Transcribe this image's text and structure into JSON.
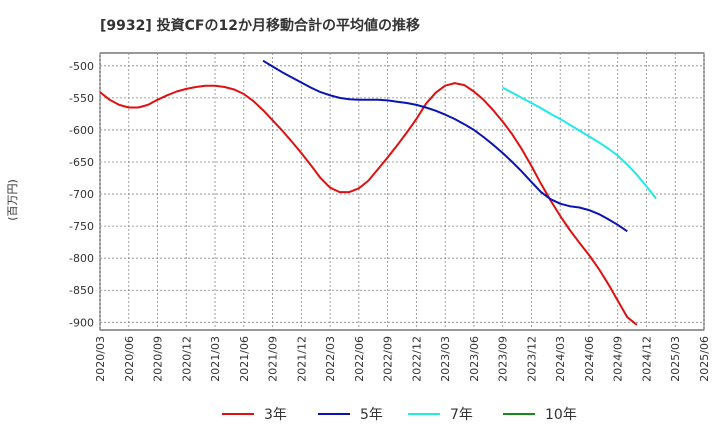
{
  "chart_data": {
    "type": "line",
    "title": "[9932]  投資CFの12か月移動合計の平均値の推移",
    "ylabel": "(百万円)",
    "xlabel": "",
    "ylim": [
      -912,
      -480
    ],
    "yticks": [
      -500,
      -550,
      -600,
      -650,
      -700,
      -750,
      -800,
      -850,
      -900
    ],
    "xlim": [
      "2020-03",
      "2025-06"
    ],
    "x_ticks": [
      "2020/03",
      "2020/06",
      "2020/09",
      "2020/12",
      "2021/03",
      "2021/06",
      "2021/09",
      "2021/12",
      "2022/03",
      "2022/06",
      "2022/09",
      "2022/12",
      "2023/03",
      "2023/06",
      "2023/09",
      "2023/12",
      "2024/03",
      "2024/06",
      "2024/09",
      "2024/12",
      "2025/03",
      "2025/06"
    ],
    "grid": true,
    "legend_position": "bottom",
    "series": [
      {
        "name": "3年",
        "color": "#dd1111",
        "points": [
          [
            "2020-03",
            -541
          ],
          [
            "2020-04",
            -553
          ],
          [
            "2020-05",
            -561
          ],
          [
            "2020-06",
            -565
          ],
          [
            "2020-07",
            -565
          ],
          [
            "2020-08",
            -561
          ],
          [
            "2020-09",
            -553
          ],
          [
            "2020-10",
            -546
          ],
          [
            "2020-11",
            -540
          ],
          [
            "2020-12",
            -536
          ],
          [
            "2021-01",
            -533
          ],
          [
            "2021-02",
            -531
          ],
          [
            "2021-03",
            -531
          ],
          [
            "2021-04",
            -533
          ],
          [
            "2021-05",
            -537
          ],
          [
            "2021-06",
            -544
          ],
          [
            "2021-07",
            -555
          ],
          [
            "2021-08",
            -569
          ],
          [
            "2021-09",
            -585
          ],
          [
            "2021-10",
            -601
          ],
          [
            "2021-11",
            -618
          ],
          [
            "2021-12",
            -636
          ],
          [
            "2022-01",
            -655
          ],
          [
            "2022-02",
            -675
          ],
          [
            "2022-03",
            -690
          ],
          [
            "2022-04",
            -697
          ],
          [
            "2022-05",
            -697
          ],
          [
            "2022-06",
            -691
          ],
          [
            "2022-07",
            -679
          ],
          [
            "2022-08",
            -661
          ],
          [
            "2022-09",
            -643
          ],
          [
            "2022-10",
            -624
          ],
          [
            "2022-11",
            -604
          ],
          [
            "2022-12",
            -583
          ],
          [
            "2023-01",
            -559
          ],
          [
            "2023-02",
            -542
          ],
          [
            "2023-03",
            -531
          ],
          [
            "2023-04",
            -527
          ],
          [
            "2023-05",
            -530
          ],
          [
            "2023-06",
            -540
          ],
          [
            "2023-07",
            -553
          ],
          [
            "2023-08",
            -569
          ],
          [
            "2023-09",
            -587
          ],
          [
            "2023-10",
            -607
          ],
          [
            "2023-11",
            -630
          ],
          [
            "2023-12",
            -656
          ],
          [
            "2024-01",
            -684
          ],
          [
            "2024-02",
            -710
          ],
          [
            "2024-03",
            -734
          ],
          [
            "2024-04",
            -756
          ],
          [
            "2024-05",
            -776
          ],
          [
            "2024-06",
            -795
          ],
          [
            "2024-07",
            -816
          ],
          [
            "2024-08",
            -840
          ],
          [
            "2024-09",
            -866
          ],
          [
            "2024-10",
            -892
          ],
          [
            "2024-11",
            -904
          ]
        ]
      },
      {
        "name": "5年",
        "color": "#0a14b4",
        "points": [
          [
            "2021-08",
            -492
          ],
          [
            "2021-09",
            -501
          ],
          [
            "2021-10",
            -510
          ],
          [
            "2021-11",
            -518
          ],
          [
            "2021-12",
            -526
          ],
          [
            "2022-01",
            -534
          ],
          [
            "2022-02",
            -541
          ],
          [
            "2022-03",
            -546
          ],
          [
            "2022-04",
            -550
          ],
          [
            "2022-05",
            -552
          ],
          [
            "2022-06",
            -553
          ],
          [
            "2022-07",
            -553
          ],
          [
            "2022-08",
            -553
          ],
          [
            "2022-09",
            -554
          ],
          [
            "2022-10",
            -556
          ],
          [
            "2022-11",
            -558
          ],
          [
            "2022-12",
            -561
          ],
          [
            "2023-01",
            -565
          ],
          [
            "2023-02",
            -570
          ],
          [
            "2023-03",
            -576
          ],
          [
            "2023-04",
            -583
          ],
          [
            "2023-05",
            -591
          ],
          [
            "2023-06",
            -600
          ],
          [
            "2023-07",
            -611
          ],
          [
            "2023-08",
            -623
          ],
          [
            "2023-09",
            -636
          ],
          [
            "2023-10",
            -650
          ],
          [
            "2023-11",
            -665
          ],
          [
            "2023-12",
            -681
          ],
          [
            "2024-01",
            -697
          ],
          [
            "2024-02",
            -708
          ],
          [
            "2024-03",
            -715
          ],
          [
            "2024-04",
            -719
          ],
          [
            "2024-05",
            -721
          ],
          [
            "2024-06",
            -725
          ],
          [
            "2024-07",
            -731
          ],
          [
            "2024-08",
            -739
          ],
          [
            "2024-09",
            -748
          ],
          [
            "2024-10",
            -758
          ]
        ]
      },
      {
        "name": "7年",
        "color": "#22e8e8",
        "points": [
          [
            "2023-09",
            -534
          ],
          [
            "2023-10",
            -542
          ],
          [
            "2023-11",
            -550
          ],
          [
            "2023-12",
            -558
          ],
          [
            "2024-01",
            -566
          ],
          [
            "2024-02",
            -575
          ],
          [
            "2024-03",
            -583
          ],
          [
            "2024-04",
            -592
          ],
          [
            "2024-05",
            -601
          ],
          [
            "2024-06",
            -610
          ],
          [
            "2024-07",
            -619
          ],
          [
            "2024-08",
            -629
          ],
          [
            "2024-09",
            -640
          ],
          [
            "2024-10",
            -654
          ],
          [
            "2024-11",
            -670
          ],
          [
            "2024-12",
            -688
          ],
          [
            "2025-01",
            -707
          ]
        ]
      },
      {
        "name": "10年",
        "color": "#1a8a1a",
        "points": []
      }
    ]
  }
}
